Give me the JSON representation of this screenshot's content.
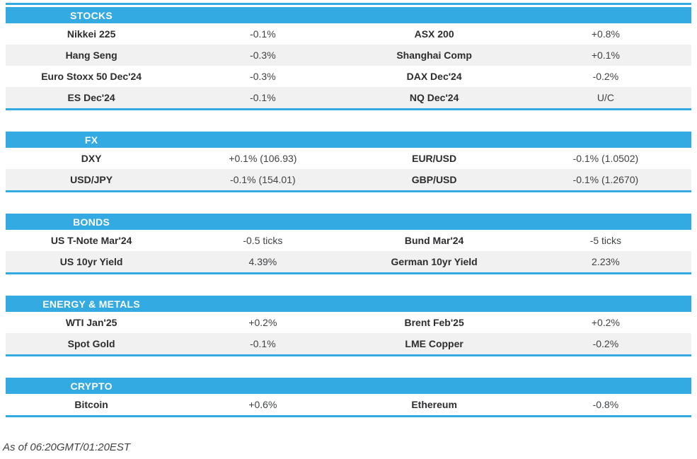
{
  "colors": {
    "accent": "#33ABE2",
    "row_alt": "#F1F1F1",
    "label": "#2D2D30",
    "value": "#3F4245"
  },
  "sections": [
    {
      "title": "STOCKS",
      "rows": [
        [
          "Nikkei 225",
          "-0.1%",
          "ASX 200",
          "+0.8%"
        ],
        [
          "Hang Seng",
          "-0.3%",
          "Shanghai Comp",
          "+0.1%"
        ],
        [
          "Euro Stoxx 50 Dec'24",
          "-0.3%",
          "DAX Dec'24",
          "-0.2%"
        ],
        [
          "ES Dec'24",
          "-0.1%",
          "NQ Dec'24",
          "U/C"
        ]
      ]
    },
    {
      "title": "FX",
      "rows": [
        [
          "DXY",
          "+0.1% (106.93)",
          "EUR/USD",
          "-0.1% (1.0502)"
        ],
        [
          "USD/JPY",
          "-0.1% (154.01)",
          "GBP/USD",
          "-0.1% (1.2670)"
        ]
      ]
    },
    {
      "title": "BONDS",
      "rows": [
        [
          "US T-Note Mar'24",
          "-0.5 ticks",
          "Bund Mar'24",
          "-5 ticks"
        ],
        [
          "US 10yr Yield",
          "4.39%",
          "German 10yr Yield",
          "2.23%"
        ]
      ]
    },
    {
      "title": "ENERGY & METALS",
      "rows": [
        [
          "WTI Jan'25",
          "+0.2%",
          "Brent Feb'25",
          "+0.2%"
        ],
        [
          "Spot Gold",
          "-0.1%",
          "LME Copper",
          "-0.2%"
        ]
      ]
    },
    {
      "title": "CRYPTO",
      "rows": [
        [
          "Bitcoin",
          "+0.6%",
          "Ethereum",
          "-0.8%"
        ]
      ]
    }
  ],
  "footer": {
    "as_of": "As of 06:20GMT/01:20EST"
  }
}
